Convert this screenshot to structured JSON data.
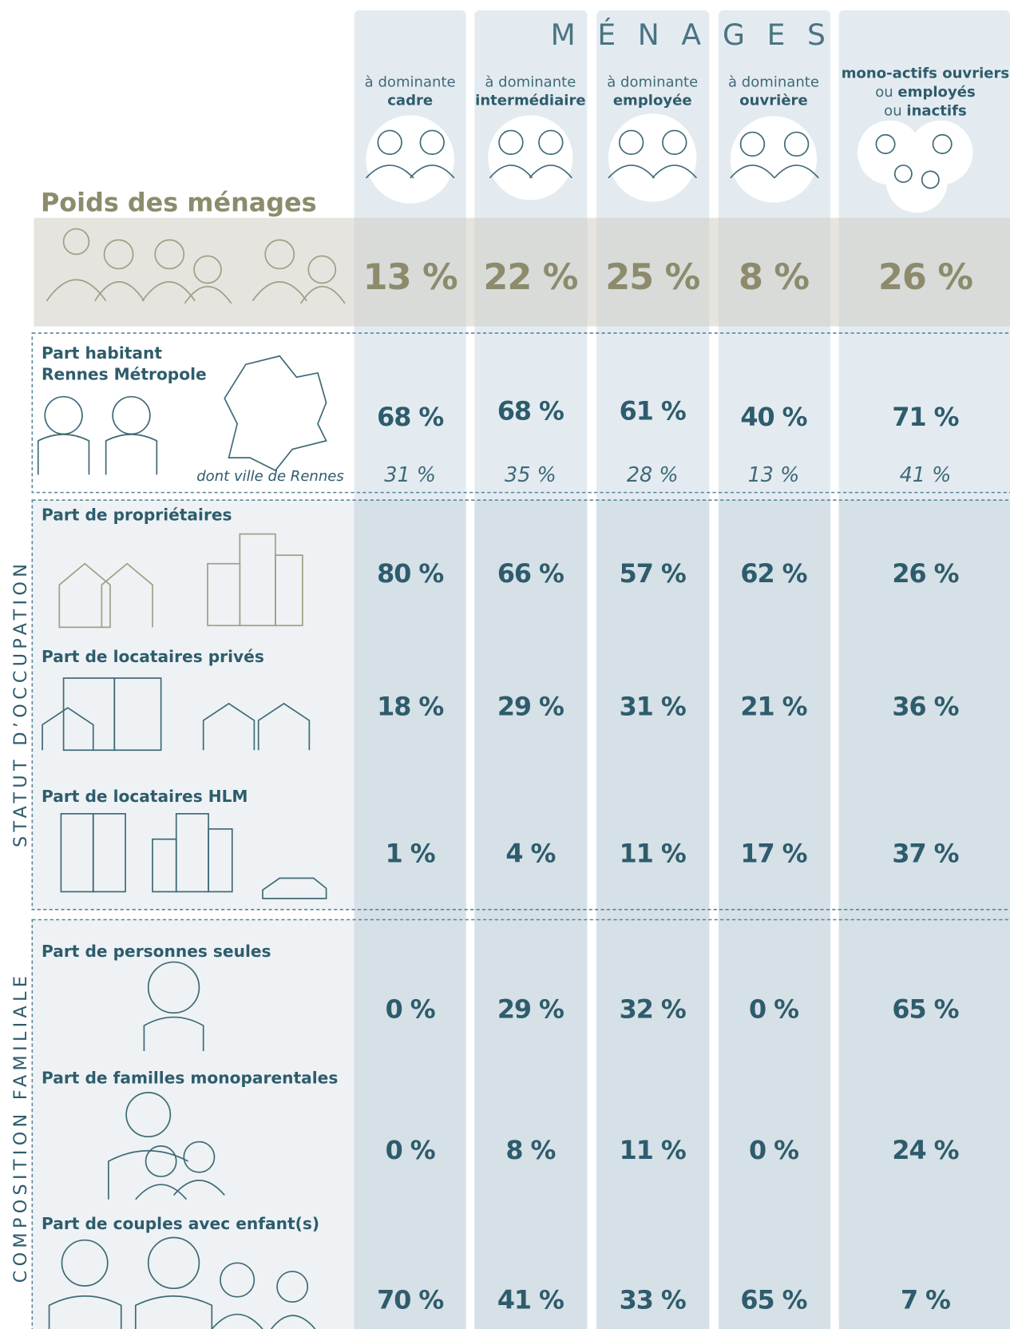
{
  "header": {
    "title": "MÉNAGES"
  },
  "columns": [
    {
      "lines": [
        [
          {
            "text": "à dominante"
          }
        ],
        [
          {
            "text": "cadre",
            "bold": true
          }
        ]
      ]
    },
    {
      "lines": [
        [
          {
            "text": "à dominante"
          }
        ],
        [
          {
            "text": "intermédiaire",
            "bold": true
          }
        ]
      ]
    },
    {
      "lines": [
        [
          {
            "text": "à dominante"
          }
        ],
        [
          {
            "text": "employée",
            "bold": true
          }
        ]
      ]
    },
    {
      "lines": [
        [
          {
            "text": "à dominante"
          }
        ],
        [
          {
            "text": "ouvrière",
            "bold": true
          }
        ]
      ]
    },
    {
      "lines": [
        [
          {
            "text": "mono-actifs ouvriers",
            "bold": true
          }
        ],
        [
          {
            "text": "ou"
          },
          {
            "text": "employés",
            "bold": true
          }
        ],
        [
          {
            "text": "ou"
          },
          {
            "text": "inactifs",
            "bold": true
          }
        ]
      ]
    }
  ],
  "poids": {
    "label": "Poids des ménages",
    "values": [
      "13 %",
      "22 %",
      "25 %",
      "8 %",
      "26 %"
    ]
  },
  "rennes": {
    "label": [
      "Part habitant",
      "Rennes Métropole"
    ],
    "values": [
      "68 %",
      "68 %",
      "61 %",
      "40 %",
      "71 %"
    ],
    "sub_label": "dont ville de Rennes",
    "sub_values": [
      "31 %",
      "35 %",
      "28 %",
      "13 %",
      "41 %"
    ]
  },
  "sections": [
    {
      "title": "STATUT D’OCCUPATION",
      "rows": [
        {
          "label": "Part de propriétaires",
          "values": [
            "80 %",
            "66 %",
            "57 %",
            "62 %",
            "26 %"
          ]
        },
        {
          "label": "Part de locataires privés",
          "values": [
            "18 %",
            "29 %",
            "31 %",
            "21 %",
            "36 %"
          ]
        },
        {
          "label": "Part de locataires HLM",
          "values": [
            "1 %",
            "4 %",
            "11 %",
            "17 %",
            "37 %"
          ]
        }
      ]
    },
    {
      "title": "COMPOSITION FAMILIALE",
      "rows": [
        {
          "label": "Part de personnes seules",
          "values": [
            "0 %",
            "29 %",
            "32 %",
            "0 %",
            "65 %"
          ]
        },
        {
          "label": "Part de familles monoparentales",
          "values": [
            "0 %",
            "8 %",
            "11 %",
            "0 %",
            "24 %"
          ]
        },
        {
          "label": "Part de couples avec enfant(s)",
          "values": [
            "70 %",
            "41 %",
            "33 %",
            "65 %",
            "7 %"
          ]
        }
      ]
    }
  ]
}
